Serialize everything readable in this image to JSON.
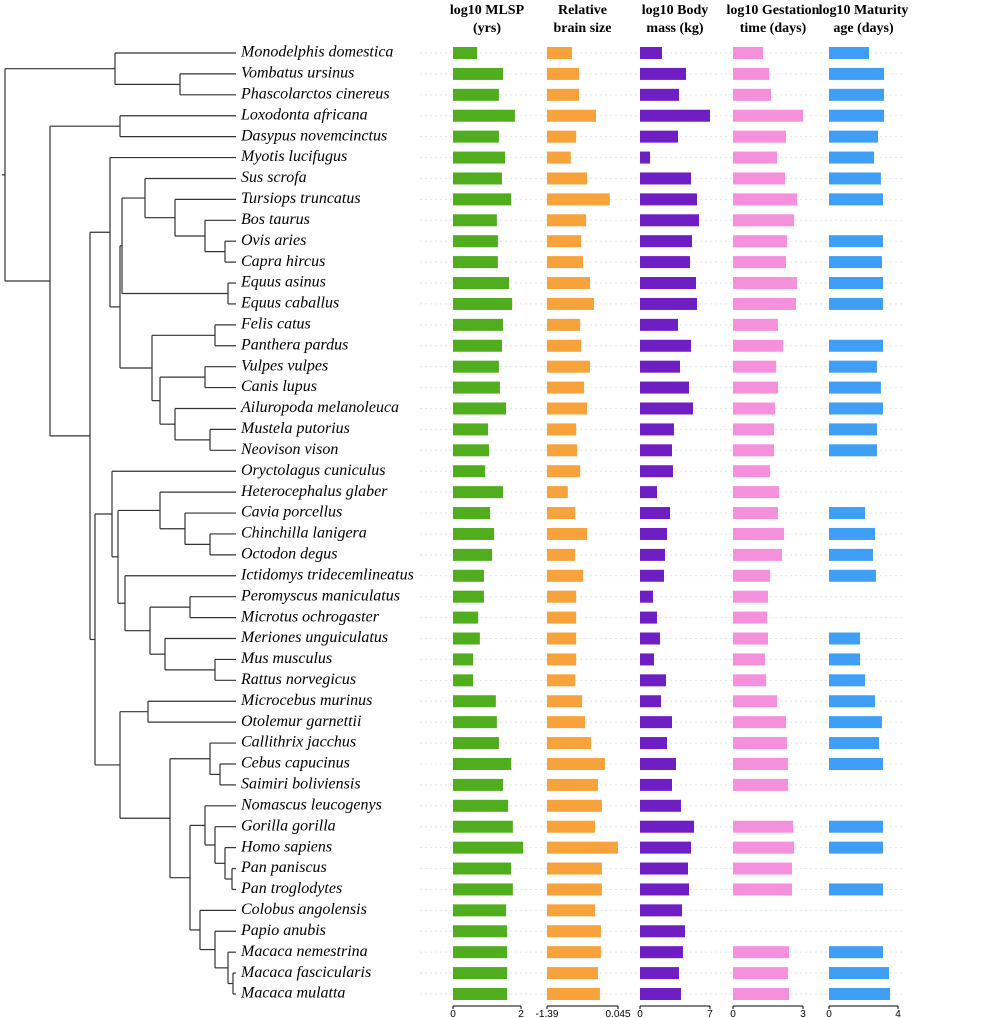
{
  "species": [
    "Monodelphis domestica",
    "Vombatus ursinus",
    "Phascolarctos cinereus",
    "Loxodonta africana",
    "Dasypus novemcinctus",
    "Myotis lucifugus",
    "Sus scrofa",
    "Tursiops truncatus",
    "Bos taurus",
    "Ovis aries",
    "Capra hircus",
    "Equus asinus",
    "Equus caballus",
    "Felis catus",
    "Panthera pardus",
    "Vulpes vulpes",
    "Canis lupus",
    "Ailuropoda melanoleuca",
    "Mustela putorius",
    "Neovison vison",
    "Oryctolagus cuniculus",
    "Heterocephalus glaber",
    "Cavia porcellus",
    "Chinchilla lanigera",
    "Octodon degus",
    "Ictidomys tridecemlineatus",
    "Peromyscus maniculatus",
    "Microtus ochrogaster",
    "Meriones unguiculatus",
    "Mus musculus",
    "Rattus norvegicus",
    "Microcebus murinus",
    "Otolemur garnettii",
    "Callithrix jacchus",
    "Cebus capucinus",
    "Saimiri boliviensis",
    "Nomascus leucogenys",
    "Gorilla gorilla",
    "Homo sapiens",
    "Pan paniscus",
    "Pan troglodytes",
    "Colobus angolensis",
    "Papio anubis",
    "Macaca nemestrina",
    "Macaca fascicularis",
    "Macaca mulatta"
  ],
  "chart_data": [
    {
      "type": "bar",
      "orientation": "horizontal",
      "title_lines": [
        "log10 MLSP",
        "(yrs)"
      ],
      "color": "#4fad1e",
      "xlim": [
        0,
        2
      ],
      "xticks": [
        0,
        2
      ],
      "values": [
        0.71,
        1.47,
        1.35,
        1.82,
        1.35,
        1.53,
        1.44,
        1.71,
        1.29,
        1.32,
        1.32,
        1.65,
        1.74,
        1.47,
        1.44,
        1.35,
        1.38,
        1.56,
        1.03,
        1.06,
        0.94,
        1.47,
        1.09,
        1.21,
        1.15,
        0.91,
        0.91,
        0.74,
        0.79,
        0.59,
        0.59,
        1.26,
        1.29,
        1.35,
        1.71,
        1.47,
        1.62,
        1.76,
        2.06,
        1.71,
        1.76,
        1.56,
        1.59,
        1.59,
        1.59,
        1.59
      ]
    },
    {
      "type": "bar",
      "orientation": "horizontal",
      "title_lines": [
        "Relative",
        "brain size"
      ],
      "color": "#f7a23a",
      "xlim": [
        -1.39,
        0.045
      ],
      "xticks": [
        -1.39,
        0.045
      ],
      "values": [
        -0.885,
        -0.74,
        -0.74,
        -0.4,
        -0.8,
        -0.91,
        -0.58,
        -0.12,
        -0.6,
        -0.7,
        -0.66,
        -0.52,
        -0.44,
        -0.72,
        -0.7,
        -0.52,
        -0.64,
        -0.58,
        -0.8,
        -0.78,
        -0.72,
        -0.97,
        -0.82,
        -0.58,
        -0.82,
        -0.66,
        -0.8,
        -0.8,
        -0.8,
        -0.8,
        -0.82,
        -0.68,
        -0.62,
        -0.5,
        -0.22,
        -0.36,
        -0.28,
        -0.42,
        0.045,
        -0.28,
        -0.28,
        -0.42,
        -0.3,
        -0.3,
        -0.36,
        -0.32
      ]
    },
    {
      "type": "bar",
      "orientation": "horizontal",
      "title_lines": [
        "log10 Body",
        "mass (kg)"
      ],
      "color": "#6f1ec4",
      "xlim": [
        0,
        7
      ],
      "xticks": [
        0,
        7
      ],
      "values": [
        2.2,
        4.6,
        3.9,
        7.0,
        3.8,
        1.0,
        5.1,
        5.7,
        5.9,
        5.2,
        5.0,
        5.6,
        5.7,
        3.8,
        5.1,
        4.0,
        4.9,
        5.3,
        3.4,
        3.2,
        3.3,
        1.7,
        3.0,
        2.7,
        2.5,
        2.4,
        1.3,
        1.7,
        2.0,
        1.4,
        2.6,
        2.1,
        3.2,
        2.7,
        3.6,
        3.2,
        4.1,
        5.4,
        5.1,
        4.8,
        4.9,
        4.2,
        4.5,
        4.3,
        3.9,
        4.1
      ]
    },
    {
      "type": "bar",
      "orientation": "horizontal",
      "title_lines": [
        "log10 Gestation",
        "time (days)"
      ],
      "color": "#f590dc",
      "xlim": [
        0,
        3
      ],
      "xticks": [
        0,
        3
      ],
      "values": [
        1.29,
        1.55,
        1.63,
        3.0,
        2.27,
        1.89,
        2.23,
        2.75,
        2.62,
        2.32,
        2.27,
        2.75,
        2.7,
        1.93,
        2.15,
        1.85,
        1.93,
        1.8,
        1.76,
        1.76,
        1.59,
        1.97,
        1.93,
        2.19,
        2.1,
        1.59,
        1.5,
        1.46,
        1.5,
        1.37,
        1.42,
        1.89,
        2.27,
        2.32,
        2.36,
        2.36,
        null,
        2.58,
        2.62,
        2.53,
        2.53,
        null,
        null,
        2.4,
        2.36,
        2.4
      ]
    },
    {
      "type": "bar",
      "orientation": "horizontal",
      "title_lines": [
        "log10 Maturity",
        "age (days)"
      ],
      "color": "#3f9ef5",
      "xlim": [
        0,
        4
      ],
      "xticks": [
        0,
        4
      ],
      "values": [
        2.32,
        3.19,
        3.19,
        3.19,
        2.84,
        2.61,
        3.01,
        3.13,
        null,
        3.13,
        3.07,
        3.13,
        3.13,
        null,
        3.13,
        2.78,
        3.01,
        3.13,
        2.78,
        2.78,
        null,
        null,
        2.09,
        2.67,
        2.55,
        2.72,
        null,
        null,
        1.8,
        1.8,
        2.09,
        2.67,
        3.07,
        2.9,
        3.13,
        null,
        null,
        3.13,
        3.13,
        null,
        3.13,
        null,
        null,
        3.13,
        3.48,
        3.54
      ]
    }
  ]
}
